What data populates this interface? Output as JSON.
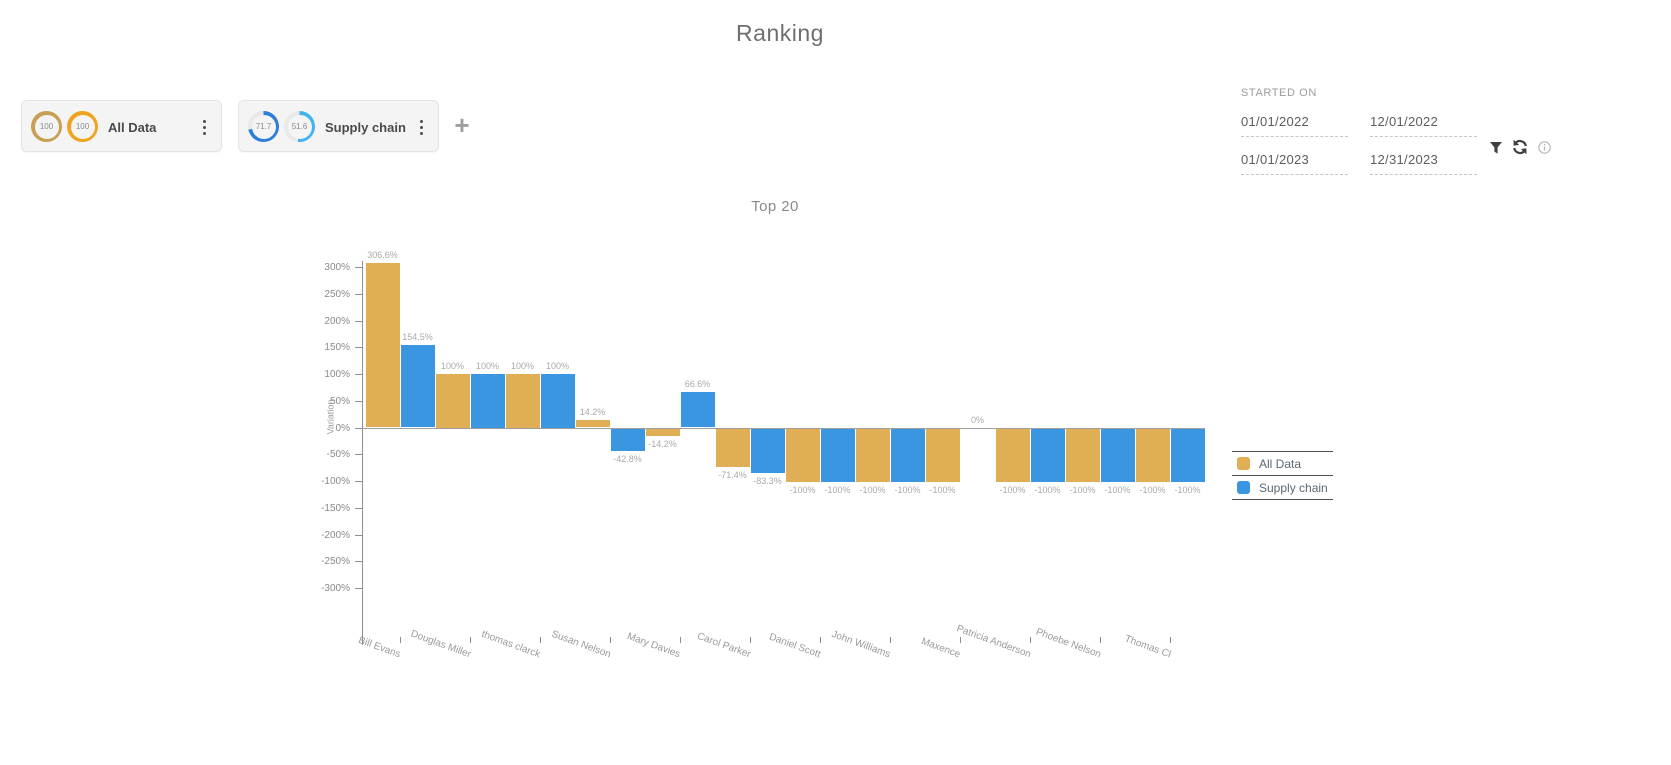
{
  "title": "Ranking",
  "scorecards": [
    {
      "name": "All Data",
      "gauges": [
        {
          "value": "100",
          "pct": 100,
          "color": "#c9a053",
          "track": "#e9e9e9"
        },
        {
          "value": "100",
          "pct": 100,
          "color": "#f0a31e",
          "track": "#e9e9e9"
        }
      ]
    },
    {
      "name": "Supply chain",
      "gauges": [
        {
          "value": "71.7",
          "pct": 71.7,
          "color": "#2e7ed5",
          "track": "#e9e9e9"
        },
        {
          "value": "51.6",
          "pct": 51.6,
          "color": "#41b4f0",
          "track": "#e9e9e9"
        }
      ]
    }
  ],
  "add_card_label": "+",
  "filter_panel": {
    "label": "STARTED ON",
    "rows": [
      [
        "01/01/2022",
        "12/01/2022"
      ],
      [
        "01/01/2023",
        "12/31/2023"
      ]
    ],
    "icons": [
      "filter-icon",
      "refresh-icon",
      "info-icon"
    ]
  },
  "chart_data": {
    "type": "bar",
    "title": "Top 20",
    "xlabel": "",
    "ylabel": "Variation",
    "ylim": [
      -300,
      300
    ],
    "ytick_step": 50,
    "ytick_suffix": "%",
    "grid": false,
    "legend_position": "right",
    "categories": [
      "Bill Evans",
      "Douglas Miller",
      "thomas clarck",
      "Susan Nelson",
      "Mary Davies",
      "Carol Parker",
      "Daniel Scott",
      "John Williams",
      "Maxence",
      "Patricia Anderson",
      "Phoebe Nelson",
      "Thomas Cl"
    ],
    "series": [
      {
        "name": "All Data",
        "color": "#dfae55",
        "values": [
          306.6,
          100,
          100,
          14.2,
          -14.2,
          -71.4,
          -100,
          -100,
          -100,
          -100,
          -100,
          -100
        ],
        "labels": [
          "306.6%",
          "100%",
          "100%",
          "14.2%",
          "-14.2%",
          "-71.4%",
          "-100%",
          "-100%",
          "-100%",
          "-100%",
          "-100%",
          "-100%"
        ]
      },
      {
        "name": "Supply chain",
        "color": "#3b96e2",
        "values": [
          154.5,
          100,
          100,
          -42.8,
          66.6,
          -83.3,
          -100,
          -100,
          0,
          -100,
          -100,
          -100
        ],
        "labels": [
          "154.5%",
          "100%",
          "100%",
          "-42.8%",
          "66.6%",
          "-83.3%",
          "-100%",
          "-100%",
          "0%",
          "-100%",
          "-100%",
          "-100%"
        ]
      }
    ]
  }
}
